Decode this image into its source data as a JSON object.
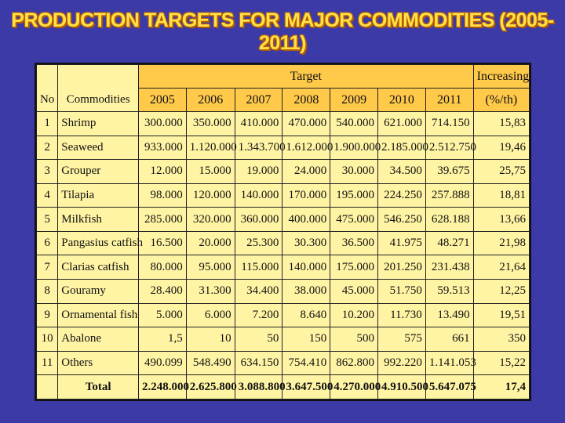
{
  "title": "PRODUCTION TARGETS FOR MAJOR COMMODITIES (2005-2011)",
  "header": {
    "no": "No",
    "commodities": "Commodities",
    "target": "Target",
    "increasing": "Increasing",
    "increasing_unit": "(%/th)",
    "years": [
      "2005",
      "2006",
      "2007",
      "2008",
      "2009",
      "2010",
      "2011"
    ]
  },
  "rows": [
    {
      "no": "1",
      "name": "Shrimp",
      "values": [
        "300.000",
        "350.000",
        "410.000",
        "470.000",
        "540.000",
        "621.000",
        "714.150"
      ],
      "increase": "15,83"
    },
    {
      "no": "2",
      "name": "Seaweed",
      "values": [
        "933.000",
        "1.120.000",
        "1.343.700",
        "1.612.000",
        "1.900.000",
        "2.185.000",
        "2.512.750"
      ],
      "increase": "19,46"
    },
    {
      "no": "3",
      "name": "Grouper",
      "values": [
        "12.000",
        "15.000",
        "19.000",
        "24.000",
        "30.000",
        "34.500",
        "39.675"
      ],
      "increase": "25,75"
    },
    {
      "no": "4",
      "name": "Tilapia",
      "values": [
        "98.000",
        "120.000",
        "140.000",
        "170.000",
        "195.000",
        "224.250",
        "257.888"
      ],
      "increase": "18,81"
    },
    {
      "no": "5",
      "name": "Milkfish",
      "values": [
        "285.000",
        "320.000",
        "360.000",
        "400.000",
        "475.000",
        "546.250",
        "628.188"
      ],
      "increase": "13,66"
    },
    {
      "no": "6",
      "name": "Pangasius catfish",
      "values": [
        "16.500",
        "20.000",
        "25.300",
        "30.300",
        "36.500",
        "41.975",
        "48.271"
      ],
      "increase": "21,98"
    },
    {
      "no": "7",
      "name": "Clarias catfish",
      "values": [
        "80.000",
        "95.000",
        "115.000",
        "140.000",
        "175.000",
        "201.250",
        "231.438"
      ],
      "increase": "21,64"
    },
    {
      "no": "8",
      "name": "Gouramy",
      "values": [
        "28.400",
        "31.300",
        "34.400",
        "38.000",
        "45.000",
        "51.750",
        "59.513"
      ],
      "increase": "12,25"
    },
    {
      "no": "9",
      "name": "Ornamental fish",
      "values": [
        "5.000",
        "6.000",
        "7.200",
        "8.640",
        "10.200",
        "11.730",
        "13.490"
      ],
      "increase": "19,51"
    },
    {
      "no": "10",
      "name": "Abalone",
      "values": [
        "1,5",
        "10",
        "50",
        "150",
        "500",
        "575",
        "661"
      ],
      "increase": "350"
    },
    {
      "no": "11",
      "name": "Others",
      "values": [
        "490.099",
        "548.490",
        "634.150",
        "754.410",
        "862.800",
        "992.220",
        "1.141.053"
      ],
      "increase": "15,22"
    }
  ],
  "total": {
    "label": "Total",
    "values": [
      "2.248.000",
      "2.625.800",
      "3.088.800",
      "3.647.500",
      "4.270.000",
      "4.910.500",
      "5.647.075"
    ],
    "increase": "17,4"
  }
}
